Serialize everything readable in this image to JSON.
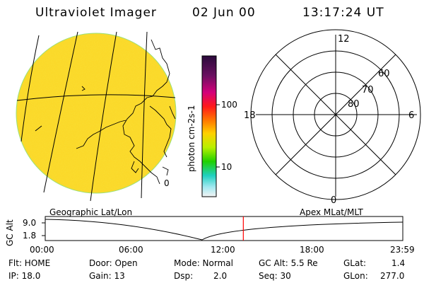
{
  "header": {
    "title": "Ultraviolet Imager",
    "date": "02 Jun 00",
    "time": "13:17:24 UT"
  },
  "colorbar": {
    "unit_label": "photon cm-2s-1",
    "ticks": [
      "100",
      "10"
    ]
  },
  "polar_plot": {
    "mlt_labels": {
      "top": "12",
      "left": "18",
      "right": "6",
      "bottom": "0"
    },
    "lat_labels": [
      "60",
      "70",
      "80"
    ]
  },
  "map": {
    "side_label": "0"
  },
  "timeline": {
    "left_title": "Geographic Lat/Lon",
    "right_title": "Apex MLat/MLT",
    "axis_label": "GC Alt",
    "y_ticks": [
      "9.0",
      "1.8"
    ],
    "x_ticks": [
      "00:00",
      "06:00",
      "12:00",
      "18:00",
      "23:59"
    ],
    "current_time_fraction": 0.554,
    "marker_color": "#ff0000"
  },
  "status": {
    "flt": "Flt: HOME",
    "ip": "IP: 18.0",
    "door": "Door: Open",
    "gain": "Gain: 13",
    "mode": "Mode: Normal",
    "dsp_label": "Dsp:",
    "dsp_value": "2.0",
    "gc_alt": "GC Alt: 5.5 Re",
    "seq": "Seq: 30",
    "glat_label": "GLat:",
    "glat_value": "1.4",
    "glon_label": "GLon:",
    "glon_value": "277.0"
  }
}
